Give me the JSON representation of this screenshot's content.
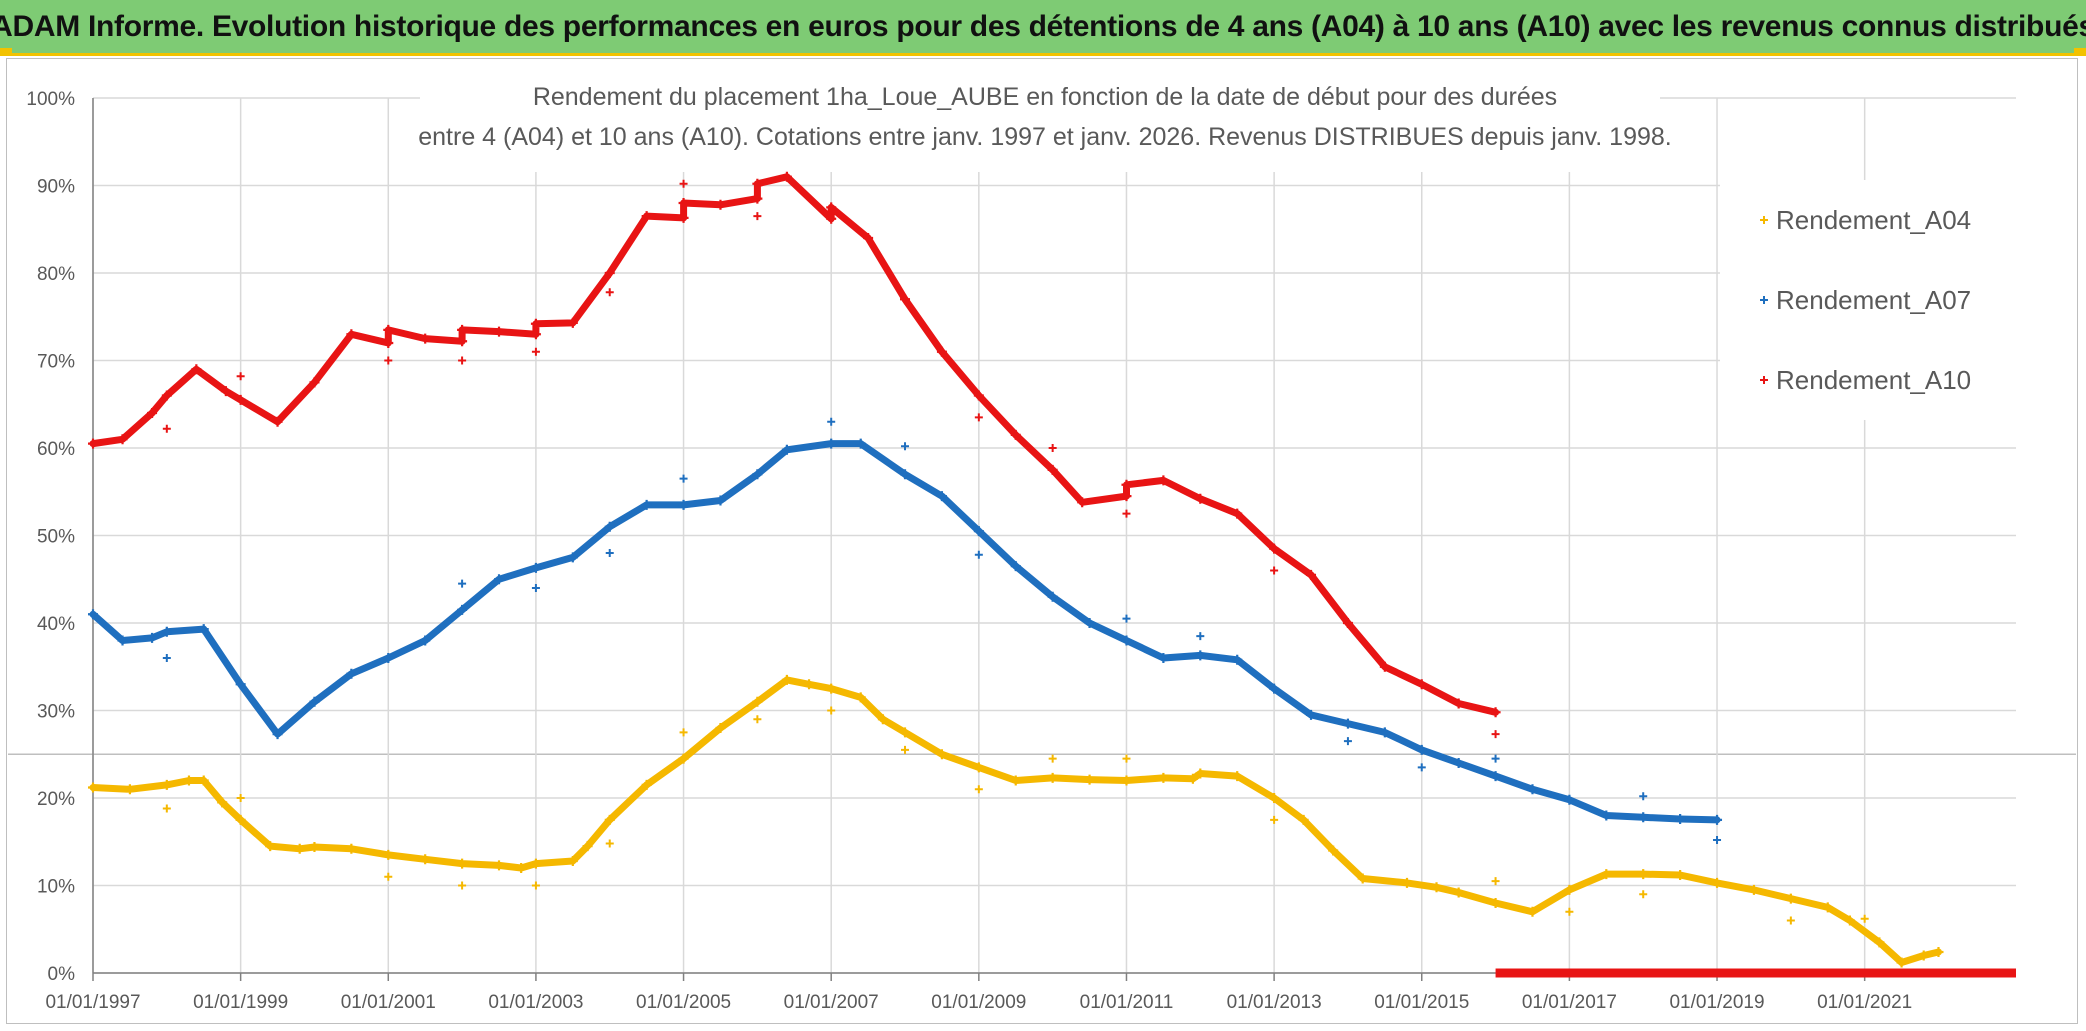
{
  "header": {
    "title": "ADAM Informe. Evolution historique des performances en euros pour des détentions de 4 ans (A04) à 10 ans (A10) avec les revenus connus distribués"
  },
  "chart_data": {
    "type": "scatter",
    "title_line1": "Rendement du placement 1ha_Loue_AUBE en fonction de la date de début pour des durées",
    "title_line2": "entre 4 (A04) et 10 ans (A10). Cotations entre janv. 1997 et janv. 2026. Revenus DISTRIBUES depuis janv. 1998.",
    "xlabel": "",
    "ylabel": "",
    "xlim": [
      1997.0,
      2023.05
    ],
    "ylim": [
      0,
      100
    ],
    "x_ticks": [
      "01/01/1997",
      "01/01/1999",
      "01/01/2001",
      "01/01/2003",
      "01/01/2005",
      "01/01/2007",
      "01/01/2009",
      "01/01/2011",
      "01/01/2013",
      "01/01/2015",
      "01/01/2017",
      "01/01/2019",
      "01/01/2021"
    ],
    "y_ticks": [
      "0%",
      "10%",
      "20%",
      "30%",
      "40%",
      "50%",
      "60%",
      "70%",
      "80%",
      "90%",
      "100%"
    ],
    "legend_position": "top-right",
    "series": [
      {
        "name": "Rendement_A04",
        "color": "#f5b800",
        "points": [
          [
            1997.0,
            21.2
          ],
          [
            1997.5,
            21.0
          ],
          [
            1998.0,
            21.5
          ],
          [
            1998.3,
            22.0
          ],
          [
            1998.5,
            22.0
          ],
          [
            1998.75,
            19.5
          ],
          [
            1999.0,
            17.5
          ],
          [
            1999.4,
            14.5
          ],
          [
            1999.8,
            14.2
          ],
          [
            2000.0,
            14.4
          ],
          [
            2000.5,
            14.2
          ],
          [
            2001.0,
            13.5
          ],
          [
            2001.5,
            13.0
          ],
          [
            2002.0,
            12.5
          ],
          [
            2002.5,
            12.3
          ],
          [
            2002.8,
            12.0
          ],
          [
            2003.0,
            12.5
          ],
          [
            2003.5,
            12.8
          ],
          [
            2003.7,
            14.5
          ],
          [
            2004.0,
            17.5
          ],
          [
            2004.5,
            21.5
          ],
          [
            2005.0,
            24.5
          ],
          [
            2005.5,
            28.0
          ],
          [
            2006.0,
            31.0
          ],
          [
            2006.4,
            33.5
          ],
          [
            2006.7,
            33.0
          ],
          [
            2007.0,
            32.5
          ],
          [
            2007.4,
            31.5
          ],
          [
            2007.7,
            29.0
          ],
          [
            2008.0,
            27.5
          ],
          [
            2008.5,
            25.0
          ],
          [
            2009.0,
            23.5
          ],
          [
            2009.5,
            22.0
          ],
          [
            2010.0,
            22.3
          ],
          [
            2010.5,
            22.1
          ],
          [
            2011.0,
            22.0
          ],
          [
            2011.5,
            22.3
          ],
          [
            2011.9,
            22.2
          ],
          [
            2012.0,
            22.8
          ],
          [
            2012.5,
            22.5
          ],
          [
            2013.0,
            20.0
          ],
          [
            2013.4,
            17.5
          ],
          [
            2013.8,
            14.0
          ],
          [
            2014.2,
            10.8
          ],
          [
            2014.8,
            10.3
          ],
          [
            2015.2,
            9.8
          ],
          [
            2015.5,
            9.2
          ],
          [
            2016.0,
            8.0
          ],
          [
            2016.5,
            7.0
          ],
          [
            2017.0,
            9.5
          ],
          [
            2017.5,
            11.3
          ],
          [
            2018.0,
            11.3
          ],
          [
            2018.5,
            11.2
          ],
          [
            2019.0,
            10.3
          ],
          [
            2019.5,
            9.5
          ],
          [
            2020.0,
            8.5
          ],
          [
            2020.5,
            7.5
          ],
          [
            2020.8,
            6.0
          ],
          [
            2021.2,
            3.5
          ],
          [
            2021.5,
            1.2
          ],
          [
            2021.8,
            2.0
          ],
          [
            2022.0,
            2.4
          ]
        ],
        "outliers": [
          [
            1998.0,
            18.8
          ],
          [
            1999.0,
            20.0
          ],
          [
            2001.0,
            11.0
          ],
          [
            2002.0,
            10.0
          ],
          [
            2003.0,
            10.0
          ],
          [
            2004.0,
            14.8
          ],
          [
            2005.0,
            27.5
          ],
          [
            2006.0,
            29.0
          ],
          [
            2007.0,
            30.0
          ],
          [
            2008.0,
            25.5
          ],
          [
            2009.0,
            21.0
          ],
          [
            2010.0,
            24.5
          ],
          [
            2011.0,
            24.5
          ],
          [
            2013.0,
            17.5
          ],
          [
            2016.0,
            10.5
          ],
          [
            2017.0,
            7.0
          ],
          [
            2018.0,
            9.0
          ],
          [
            2020.0,
            6.0
          ],
          [
            2021.0,
            6.2
          ]
        ]
      },
      {
        "name": "Rendement_A07",
        "color": "#1f6fbf",
        "points": [
          [
            1997.0,
            41.0
          ],
          [
            1997.4,
            38.0
          ],
          [
            1997.8,
            38.3
          ],
          [
            1998.0,
            39.0
          ],
          [
            1998.5,
            39.3
          ],
          [
            1999.0,
            33.0
          ],
          [
            1999.5,
            27.3
          ],
          [
            2000.0,
            31.0
          ],
          [
            2000.5,
            34.2
          ],
          [
            2001.0,
            36.0
          ],
          [
            2001.5,
            38.0
          ],
          [
            2002.0,
            41.5
          ],
          [
            2002.5,
            45.0
          ],
          [
            2003.0,
            46.3
          ],
          [
            2003.5,
            47.5
          ],
          [
            2004.0,
            51.0
          ],
          [
            2004.5,
            53.5
          ],
          [
            2005.0,
            53.5
          ],
          [
            2005.5,
            54.0
          ],
          [
            2006.0,
            57.0
          ],
          [
            2006.4,
            59.8
          ],
          [
            2007.0,
            60.5
          ],
          [
            2007.4,
            60.5
          ],
          [
            2008.0,
            57.0
          ],
          [
            2008.5,
            54.5
          ],
          [
            2009.0,
            50.5
          ],
          [
            2009.5,
            46.5
          ],
          [
            2010.0,
            43.0
          ],
          [
            2010.5,
            40.0
          ],
          [
            2011.0,
            38.0
          ],
          [
            2011.5,
            36.0
          ],
          [
            2012.0,
            36.3
          ],
          [
            2012.5,
            35.8
          ],
          [
            2013.0,
            32.5
          ],
          [
            2013.5,
            29.5
          ],
          [
            2014.0,
            28.5
          ],
          [
            2014.5,
            27.5
          ],
          [
            2015.0,
            25.5
          ],
          [
            2015.5,
            24.0
          ],
          [
            2016.0,
            22.5
          ],
          [
            2016.5,
            21.0
          ],
          [
            2017.0,
            19.8
          ],
          [
            2017.5,
            18.0
          ],
          [
            2018.0,
            17.8
          ],
          [
            2018.5,
            17.6
          ],
          [
            2019.0,
            17.5
          ]
        ],
        "outliers": [
          [
            1998.0,
            36.0
          ],
          [
            2002.0,
            44.5
          ],
          [
            2003.0,
            44.0
          ],
          [
            2004.0,
            48.0
          ],
          [
            2005.0,
            56.5
          ],
          [
            2007.0,
            63.0
          ],
          [
            2008.0,
            60.2
          ],
          [
            2009.0,
            47.8
          ],
          [
            2011.0,
            40.5
          ],
          [
            2012.0,
            38.5
          ],
          [
            2014.0,
            26.5
          ],
          [
            2015.0,
            23.5
          ],
          [
            2016.0,
            24.5
          ],
          [
            2018.0,
            20.2
          ],
          [
            2019.0,
            15.2
          ]
        ]
      },
      {
        "name": "Rendement_A10",
        "color": "#e81414",
        "points": [
          [
            1997.0,
            60.5
          ],
          [
            1997.4,
            61.0
          ],
          [
            1997.8,
            64.0
          ],
          [
            1998.0,
            66.0
          ],
          [
            1998.4,
            69.0
          ],
          [
            1998.8,
            66.5
          ],
          [
            1999.0,
            65.5
          ],
          [
            1999.5,
            63.0
          ],
          [
            2000.0,
            67.5
          ],
          [
            2000.5,
            73.0
          ],
          [
            2001.0,
            72.0
          ],
          [
            2001.0,
            73.5
          ],
          [
            2001.5,
            72.5
          ],
          [
            2002.0,
            72.2
          ],
          [
            2002.0,
            73.5
          ],
          [
            2002.5,
            73.3
          ],
          [
            2003.0,
            73.0
          ],
          [
            2003.0,
            74.2
          ],
          [
            2003.5,
            74.3
          ],
          [
            2004.0,
            80.0
          ],
          [
            2004.5,
            86.5
          ],
          [
            2005.0,
            86.3
          ],
          [
            2005.0,
            88.0
          ],
          [
            2005.5,
            87.8
          ],
          [
            2006.0,
            88.5
          ],
          [
            2006.0,
            90.2
          ],
          [
            2006.4,
            91.0
          ],
          [
            2007.0,
            86.2
          ],
          [
            2007.0,
            87.5
          ],
          [
            2007.5,
            84.0
          ],
          [
            2008.0,
            77.0
          ],
          [
            2008.5,
            71.0
          ],
          [
            2009.0,
            66.0
          ],
          [
            2009.5,
            61.5
          ],
          [
            2010.0,
            57.5
          ],
          [
            2010.4,
            53.8
          ],
          [
            2011.0,
            54.5
          ],
          [
            2011.0,
            55.8
          ],
          [
            2011.5,
            56.3
          ],
          [
            2012.0,
            54.2
          ],
          [
            2012.5,
            52.5
          ],
          [
            2013.0,
            48.5
          ],
          [
            2013.5,
            45.5
          ],
          [
            2014.0,
            40.0
          ],
          [
            2014.5,
            35.0
          ],
          [
            2015.0,
            33.0
          ],
          [
            2015.5,
            30.8
          ],
          [
            2016.0,
            29.8
          ]
        ],
        "outliers": [
          [
            1998.0,
            62.2
          ],
          [
            1999.0,
            68.2
          ],
          [
            2001.0,
            70.0
          ],
          [
            2002.0,
            70.0
          ],
          [
            2003.0,
            71.0
          ],
          [
            2004.0,
            77.8
          ],
          [
            2005.0,
            90.2
          ],
          [
            2006.0,
            86.5
          ],
          [
            2009.0,
            63.5
          ],
          [
            2010.0,
            60.0
          ],
          [
            2011.0,
            52.5
          ],
          [
            2013.0,
            46.0
          ],
          [
            2016.0,
            27.3
          ]
        ],
        "zero_line": [
          2016.0,
          2023.05
        ]
      }
    ]
  }
}
